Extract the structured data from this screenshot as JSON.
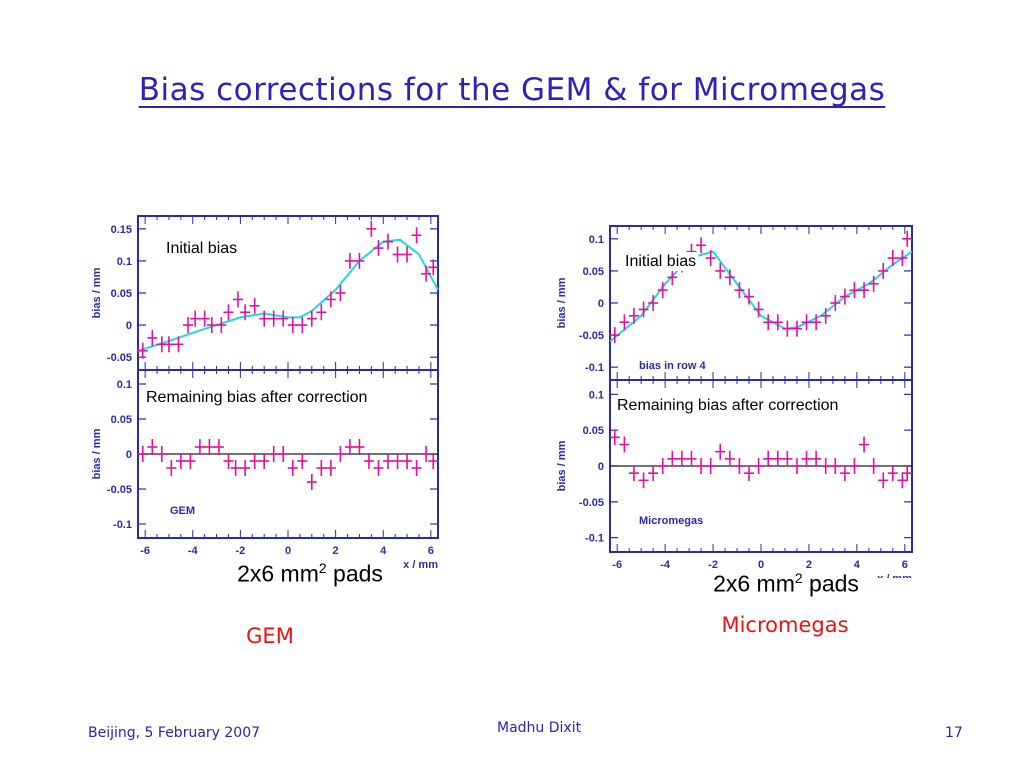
{
  "title": "Bias corrections for the GEM & for Micromegas",
  "footer": {
    "left": "Beijing, 5 February 2007",
    "center": "Madhu Dixit",
    "right": "17"
  },
  "captions": {
    "gem_pads": "2x6 mm",
    "gem_pads_sup": "2",
    "gem_pads_tail": " pads",
    "mm_pads": "2x6 mm",
    "mm_pads_sup": "2",
    "mm_pads_tail": " pads",
    "gem_label": "GEM",
    "mm_label": "Micromegas"
  },
  "colors": {
    "title": "#2e22b8",
    "frame": "#2b2baa",
    "points": "#e8109a",
    "fit": "#22d8e0",
    "label_red": "#ee1111"
  },
  "chart_data": [
    {
      "type": "scatter",
      "panel": "GEM-top",
      "title": "Initial bias",
      "xlabel": "",
      "ylabel": "bias / mm",
      "xlim": [
        -6.3,
        6.3
      ],
      "ylim": [
        -0.07,
        0.17
      ],
      "yticks": [
        -0.05,
        0,
        0.05,
        0.1,
        0.15
      ],
      "ytick_labels": [
        "-0.05",
        "0",
        "0.05",
        "0.1",
        "0.15"
      ],
      "points": [
        [
          -6.1,
          -0.04
        ],
        [
          -5.7,
          -0.02
        ],
        [
          -5.3,
          -0.03
        ],
        [
          -5.0,
          -0.03
        ],
        [
          -4.6,
          -0.03
        ],
        [
          -4.2,
          0.0
        ],
        [
          -3.9,
          0.01
        ],
        [
          -3.5,
          0.01
        ],
        [
          -3.2,
          0.0
        ],
        [
          -2.8,
          0.0
        ],
        [
          -2.5,
          0.02
        ],
        [
          -2.1,
          0.04
        ],
        [
          -1.8,
          0.02
        ],
        [
          -1.4,
          0.03
        ],
        [
          -1.0,
          0.01
        ],
        [
          -0.6,
          0.01
        ],
        [
          -0.2,
          0.01
        ],
        [
          0.2,
          0.0
        ],
        [
          0.6,
          0.0
        ],
        [
          1.0,
          0.01
        ],
        [
          1.4,
          0.02
        ],
        [
          1.8,
          0.04
        ],
        [
          2.2,
          0.05
        ],
        [
          2.6,
          0.1
        ],
        [
          3.0,
          0.1
        ],
        [
          3.5,
          0.15
        ],
        [
          3.8,
          0.12
        ],
        [
          4.2,
          0.13
        ],
        [
          4.6,
          0.11
        ],
        [
          5.0,
          0.11
        ],
        [
          5.4,
          0.14
        ],
        [
          5.8,
          0.08
        ],
        [
          6.1,
          0.09
        ]
      ],
      "fit_curve": [
        [
          -6.3,
          -0.04
        ],
        [
          -5,
          -0.025
        ],
        [
          -4,
          -0.012
        ],
        [
          -3,
          0.0
        ],
        [
          -2,
          0.012
        ],
        [
          -1,
          0.018
        ],
        [
          0,
          0.012
        ],
        [
          0.5,
          0.012
        ],
        [
          1,
          0.022
        ],
        [
          2,
          0.055
        ],
        [
          3,
          0.1
        ],
        [
          4,
          0.13
        ],
        [
          4.7,
          0.133
        ],
        [
          5.5,
          0.11
        ],
        [
          6.3,
          0.055
        ]
      ],
      "fit": "cyan fit curve"
    },
    {
      "type": "scatter",
      "panel": "GEM-bottom",
      "title": "Remaining bias after correction",
      "xlabel": "x / mm",
      "ylabel": "bias / mm",
      "xlim": [
        -6.3,
        6.3
      ],
      "ylim": [
        -0.12,
        0.12
      ],
      "yticks": [
        -0.1,
        -0.05,
        0,
        0.05,
        0.1
      ],
      "ytick_labels": [
        "-0.1",
        "-0.05",
        "0",
        "0.05",
        "0.1"
      ],
      "xticks": [
        -6,
        -4,
        -2,
        0,
        2,
        4,
        6
      ],
      "xtick_labels": [
        "-6",
        "-4",
        "-2",
        "0",
        "2",
        "4",
        "6"
      ],
      "points": [
        [
          -6.1,
          0.0
        ],
        [
          -5.7,
          0.01
        ],
        [
          -5.3,
          0.0
        ],
        [
          -4.9,
          -0.02
        ],
        [
          -4.5,
          -0.01
        ],
        [
          -4.1,
          -0.01
        ],
        [
          -3.7,
          0.01
        ],
        [
          -3.3,
          0.01
        ],
        [
          -2.9,
          0.01
        ],
        [
          -2.5,
          -0.01
        ],
        [
          -2.2,
          -0.02
        ],
        [
          -1.8,
          -0.02
        ],
        [
          -1.4,
          -0.01
        ],
        [
          -1.0,
          -0.01
        ],
        [
          -0.6,
          0.0
        ],
        [
          -0.2,
          0.0
        ],
        [
          0.2,
          -0.02
        ],
        [
          0.6,
          -0.01
        ],
        [
          1.0,
          -0.04
        ],
        [
          1.4,
          -0.02
        ],
        [
          1.8,
          -0.02
        ],
        [
          2.2,
          0.0
        ],
        [
          2.6,
          0.01
        ],
        [
          3.0,
          0.01
        ],
        [
          3.4,
          -0.01
        ],
        [
          3.8,
          -0.02
        ],
        [
          4.2,
          -0.01
        ],
        [
          4.6,
          -0.01
        ],
        [
          5.0,
          -0.01
        ],
        [
          5.4,
          -0.02
        ],
        [
          5.8,
          0.0
        ],
        [
          6.1,
          -0.01
        ]
      ],
      "reference_line": 0,
      "annotation": "GEM"
    },
    {
      "type": "scatter",
      "panel": "Micromegas-top",
      "title": "Initial bias",
      "xlabel": "",
      "ylabel": "bias / mm",
      "xlim": [
        -6.3,
        6.3
      ],
      "ylim": [
        -0.12,
        0.12
      ],
      "yticks": [
        -0.1,
        -0.05,
        0,
        0.05,
        0.1
      ],
      "ytick_labels": [
        "-0.1",
        "-0.05",
        "0",
        "0.05",
        "0.1"
      ],
      "points": [
        [
          -6.1,
          -0.05
        ],
        [
          -5.7,
          -0.03
        ],
        [
          -5.3,
          -0.02
        ],
        [
          -4.9,
          -0.01
        ],
        [
          -4.5,
          0.0
        ],
        [
          -4.1,
          0.02
        ],
        [
          -3.7,
          0.04
        ],
        [
          -3.3,
          0.06
        ],
        [
          -2.9,
          0.08
        ],
        [
          -2.5,
          0.09
        ],
        [
          -2.1,
          0.07
        ],
        [
          -1.7,
          0.05
        ],
        [
          -1.3,
          0.04
        ],
        [
          -0.9,
          0.02
        ],
        [
          -0.5,
          0.01
        ],
        [
          -0.1,
          -0.01
        ],
        [
          0.3,
          -0.03
        ],
        [
          0.7,
          -0.03
        ],
        [
          1.1,
          -0.04
        ],
        [
          1.5,
          -0.04
        ],
        [
          1.9,
          -0.03
        ],
        [
          2.3,
          -0.03
        ],
        [
          2.7,
          -0.02
        ],
        [
          3.1,
          0.0
        ],
        [
          3.5,
          0.01
        ],
        [
          3.9,
          0.02
        ],
        [
          4.3,
          0.02
        ],
        [
          4.7,
          0.03
        ],
        [
          5.1,
          0.05
        ],
        [
          5.5,
          0.07
        ],
        [
          5.9,
          0.07
        ],
        [
          6.1,
          0.1
        ]
      ],
      "fit_curve": [
        [
          -6.3,
          -0.06
        ],
        [
          -5,
          -0.02
        ],
        [
          -4,
          0.03
        ],
        [
          -3,
          0.07
        ],
        [
          -2,
          0.08
        ],
        [
          -1,
          0.03
        ],
        [
          0,
          -0.02
        ],
        [
          1,
          -0.04
        ],
        [
          1.5,
          -0.038
        ],
        [
          2.5,
          -0.02
        ],
        [
          3.5,
          0.01
        ],
        [
          4.5,
          0.03
        ],
        [
          5.5,
          0.06
        ],
        [
          6.3,
          0.08
        ]
      ],
      "fit": "cyan fit curve",
      "annotation": "bias in row 4"
    },
    {
      "type": "scatter",
      "panel": "Micromegas-bottom",
      "title": "Remaining bias after correction",
      "xlabel": "x / mm",
      "ylabel": "bias / mm",
      "xlim": [
        -6.3,
        6.3
      ],
      "ylim": [
        -0.12,
        0.12
      ],
      "yticks": [
        -0.1,
        -0.05,
        0,
        0.05,
        0.1
      ],
      "ytick_labels": [
        "-0.1",
        "-0.05",
        "0",
        "0.05",
        "0.1"
      ],
      "xticks": [
        -6,
        -4,
        -2,
        0,
        2,
        4,
        6
      ],
      "xtick_labels": [
        "-6",
        "-4",
        "-2",
        "0",
        "2",
        "4",
        "6"
      ],
      "points": [
        [
          -6.1,
          0.04
        ],
        [
          -5.7,
          0.03
        ],
        [
          -5.3,
          -0.01
        ],
        [
          -4.9,
          -0.02
        ],
        [
          -4.5,
          -0.01
        ],
        [
          -4.1,
          0.0
        ],
        [
          -3.7,
          0.01
        ],
        [
          -3.3,
          0.01
        ],
        [
          -2.9,
          0.01
        ],
        [
          -2.5,
          0.0
        ],
        [
          -2.1,
          0.0
        ],
        [
          -1.7,
          0.02
        ],
        [
          -1.3,
          0.01
        ],
        [
          -0.9,
          0.0
        ],
        [
          -0.5,
          -0.01
        ],
        [
          -0.1,
          0.0
        ],
        [
          0.3,
          0.01
        ],
        [
          0.7,
          0.01
        ],
        [
          1.1,
          0.01
        ],
        [
          1.5,
          0.0
        ],
        [
          1.9,
          0.01
        ],
        [
          2.3,
          0.01
        ],
        [
          2.7,
          0.0
        ],
        [
          3.1,
          0.0
        ],
        [
          3.5,
          -0.01
        ],
        [
          3.9,
          0.0
        ],
        [
          4.3,
          0.03
        ],
        [
          4.7,
          0.0
        ],
        [
          5.1,
          -0.02
        ],
        [
          5.5,
          -0.01
        ],
        [
          5.9,
          -0.02
        ],
        [
          6.1,
          -0.01
        ]
      ],
      "reference_line": 0,
      "annotation": "Micromegas"
    }
  ]
}
